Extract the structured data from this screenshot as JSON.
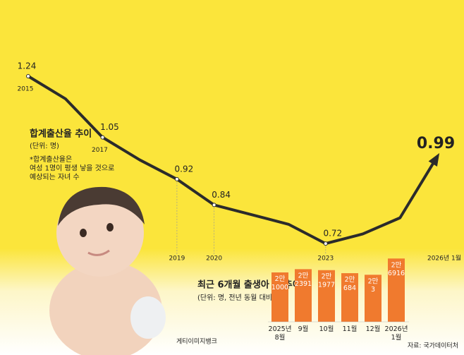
{
  "chart_data": [
    {
      "type": "line",
      "title": "합계출산율 추이",
      "subtitle": "(단위: 명)",
      "annotation": "*합계출산율은 여성 1명이 평생 낳을 것으로 예상되는 자녀 수",
      "categories": [
        "2015",
        null,
        "2017",
        null,
        "2019",
        "2020",
        null,
        null,
        "2023",
        null,
        null,
        "2026년 1월"
      ],
      "values": [
        1.24,
        1.17,
        1.05,
        0.98,
        0.92,
        0.84,
        0.81,
        0.78,
        0.72,
        0.75,
        0.8,
        0.99
      ],
      "color": "#2b2b2b",
      "ylim": [
        0.6,
        1.3
      ]
    },
    {
      "type": "bar",
      "title": "최근 6개월 출생아 수 추이",
      "subtitle": "(단위: 명, 전년 동월 대비)",
      "categories": [
        "2025년 8월",
        "9월",
        "10월",
        "11월",
        "12월",
        "2026년 1월"
      ],
      "values": [
        21000,
        22391,
        21977,
        20684,
        20003,
        26916
      ],
      "value_labels": [
        "2만 1000",
        "2만 2391",
        "2만 1977",
        "2만 684",
        "2만 3",
        "2만 6916"
      ],
      "color": "#f07a2e",
      "ylim": [
        0,
        30000
      ]
    }
  ],
  "photo_credit": "게티이미지뱅크",
  "source": "자료: 국가데이터처"
}
